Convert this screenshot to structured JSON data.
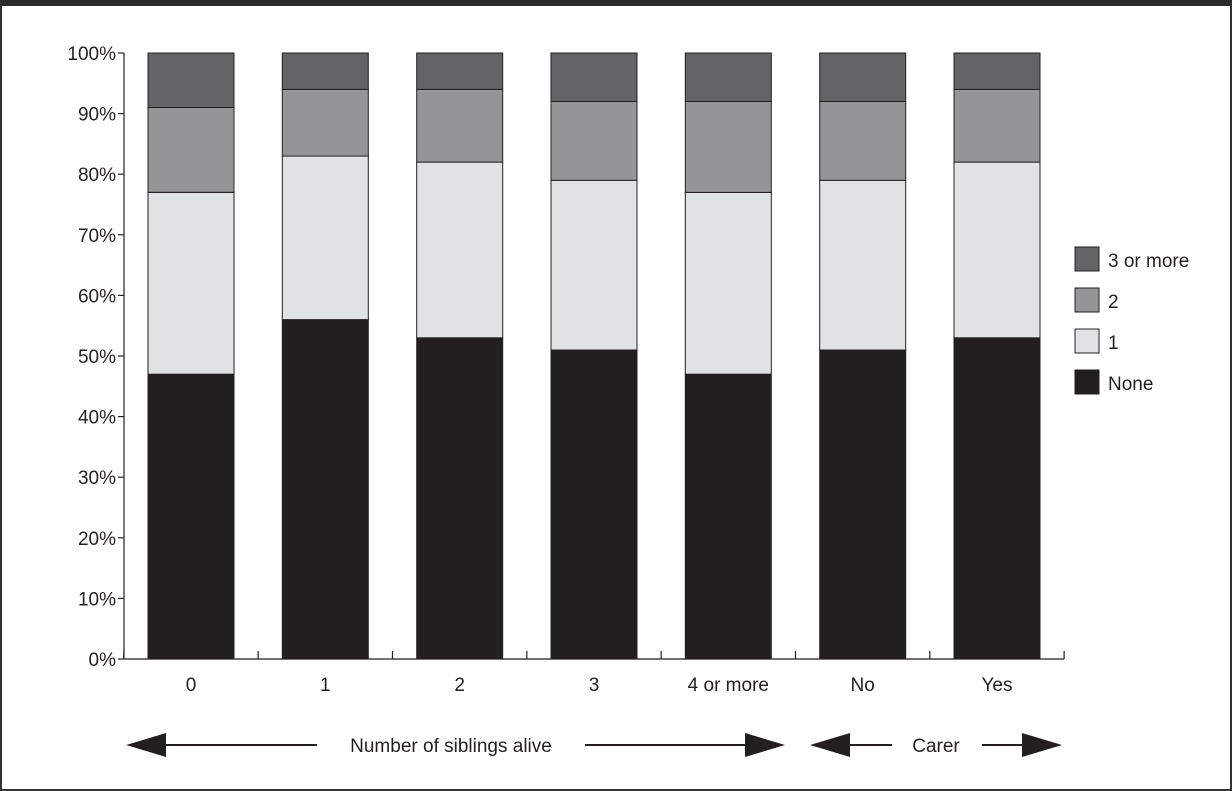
{
  "chart_data": {
    "type": "bar",
    "stacked": true,
    "title": "",
    "xlabel": "",
    "ylabel": "",
    "ylim": [
      0,
      100
    ],
    "y_ticks": [
      "0%",
      "10%",
      "20%",
      "30%",
      "40%",
      "50%",
      "60%",
      "70%",
      "80%",
      "90%",
      "100%"
    ],
    "categories": [
      "0",
      "1",
      "2",
      "3",
      "4 or more",
      "No",
      "Yes"
    ],
    "series": [
      {
        "name": "None",
        "color": "#231f20",
        "values": [
          47,
          56,
          53,
          51,
          47,
          51,
          53
        ]
      },
      {
        "name": "1",
        "color": "#e1e2e3",
        "values": [
          30,
          27,
          29,
          28,
          30,
          28,
          29
        ]
      },
      {
        "name": "2",
        "color": "#939598",
        "values": [
          14,
          11,
          12,
          13,
          15,
          13,
          12
        ]
      },
      {
        "name": "3 or more",
        "color": "#636466",
        "values": [
          9,
          6,
          6,
          8,
          8,
          8,
          6
        ]
      }
    ],
    "legend": {
      "position": "right",
      "order": [
        "3 or more",
        "2",
        "1",
        "None"
      ]
    },
    "groups": [
      {
        "label": "Number of siblings alive",
        "categories": [
          "0",
          "1",
          "2",
          "3",
          "4 or more"
        ]
      },
      {
        "label": "Carer",
        "categories": [
          "No",
          "Yes"
        ]
      }
    ],
    "grid": false
  }
}
